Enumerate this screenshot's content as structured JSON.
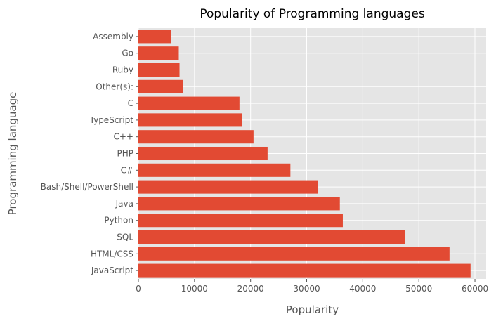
{
  "chart_data": {
    "type": "bar",
    "orientation": "horizontal",
    "title": "Popularity of Programming languages",
    "xlabel": "Popularity",
    "ylabel": "Programming language",
    "categories": [
      "JavaScript",
      "HTML/CSS",
      "SQL",
      "Python",
      "Java",
      "Bash/Shell/PowerShell",
      "C#",
      "PHP",
      "C++",
      "TypeScript",
      "C",
      "Other(s):",
      "Ruby",
      "Go",
      "Assembly"
    ],
    "values": [
      59219,
      55466,
      47544,
      36443,
      35917,
      31991,
      27097,
      23030,
      20524,
      18523,
      18017,
      7920,
      7331,
      7201,
      5833
    ],
    "xlim": [
      0,
      62000
    ],
    "xticks": [
      0,
      10000,
      20000,
      30000,
      40000,
      50000,
      60000
    ],
    "grid": true,
    "style": "ggplot",
    "colors": {
      "bar": "#E24A33",
      "plot_background": "#E5E5E5",
      "grid": "#FFFFFF",
      "tick_label": "#555555",
      "axis_label": "#555555",
      "title": "#000000"
    }
  }
}
